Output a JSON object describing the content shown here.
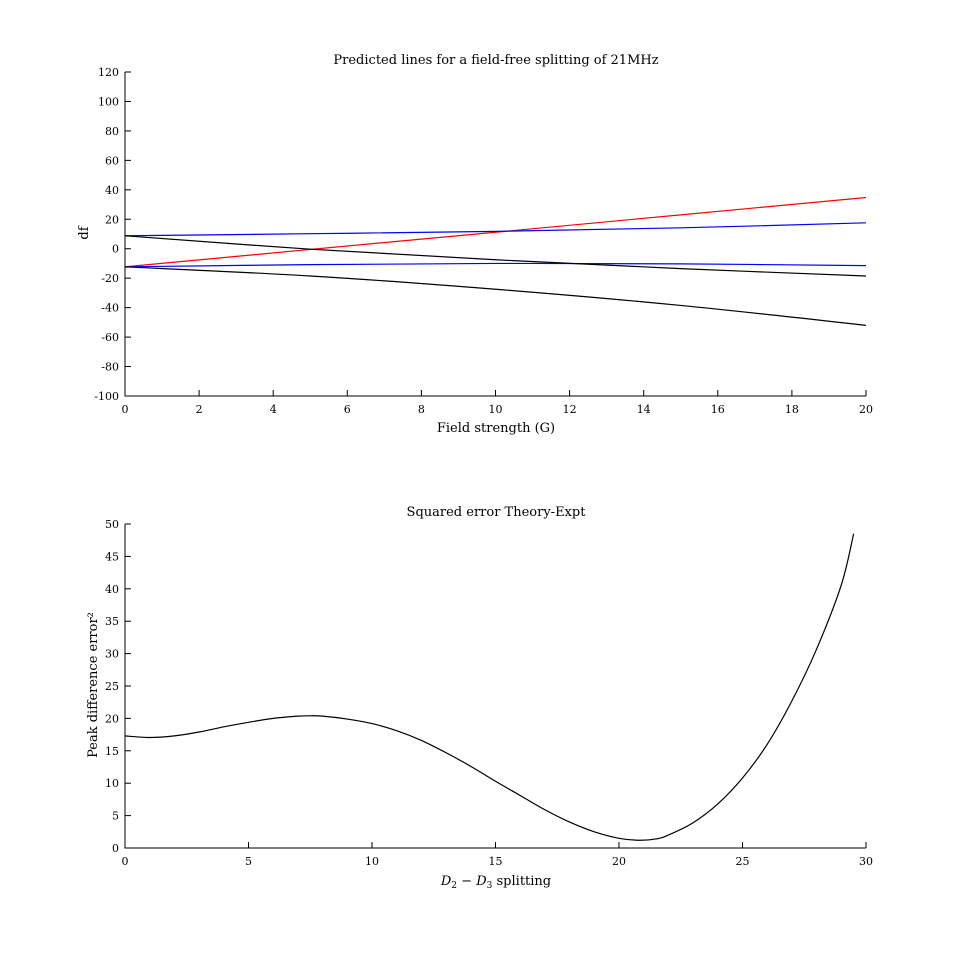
{
  "chart_data": [
    {
      "type": "line",
      "title": "Predicted lines for a field-free splitting of 21MHz",
      "xlabel": "Field strength (G)",
      "ylabel": "df",
      "xlim": [
        0,
        20
      ],
      "ylim": [
        -100,
        120
      ],
      "xticks": [
        0,
        2,
        4,
        6,
        8,
        10,
        12,
        14,
        16,
        18,
        20
      ],
      "yticks": [
        -100,
        -80,
        -60,
        -40,
        -20,
        0,
        20,
        40,
        60,
        80,
        100,
        120
      ],
      "grid": false,
      "series": [
        {
          "color": "#ff0000",
          "x": [
            0,
            5,
            10,
            15,
            20
          ],
          "y": [
            -12.3,
            -0.5,
            11.2,
            23.0,
            34.8
          ]
        },
        {
          "color": "#0000ff",
          "x": [
            0,
            5,
            10,
            15,
            20
          ],
          "y": [
            8.8,
            10.2,
            11.8,
            14.2,
            17.6
          ]
        },
        {
          "color": "#0000ff",
          "x": [
            0,
            5,
            10,
            15,
            20
          ],
          "y": [
            -12.3,
            -10.8,
            -10.0,
            -10.3,
            -11.5
          ]
        },
        {
          "color": "#000000",
          "x": [
            0,
            5,
            10,
            15,
            20
          ],
          "y": [
            8.8,
            -0.3,
            -7.5,
            -13.5,
            -18.5
          ]
        },
        {
          "color": "#000000",
          "x": [
            0,
            5,
            10,
            15,
            20
          ],
          "y": [
            -12.3,
            -18.5,
            -27.5,
            -38.5,
            -52.0
          ]
        }
      ]
    },
    {
      "type": "line",
      "title": "Squared error Theory-Expt",
      "xlabel": "D2 − D3 splitting",
      "xlabel_parts": {
        "d": "D",
        "sub1": "2",
        "minus": " − ",
        "sub2": "3",
        "rest": " splitting"
      },
      "ylabel": "Peak difference error²",
      "xlim": [
        0,
        30
      ],
      "ylim": [
        0,
        50
      ],
      "xticks": [
        0,
        5,
        10,
        15,
        20,
        25,
        30
      ],
      "yticks": [
        0,
        5,
        10,
        15,
        20,
        25,
        30,
        35,
        40,
        45,
        50
      ],
      "grid": false,
      "series": [
        {
          "color": "#000000",
          "x": [
            0,
            1,
            2,
            3,
            4,
            5,
            6,
            7,
            7.5,
            8,
            9,
            10,
            11,
            12,
            13,
            14,
            15,
            16,
            17,
            18,
            19,
            20,
            20.8,
            21.5,
            22,
            23,
            24,
            25,
            26,
            27,
            28,
            29,
            29.5
          ],
          "y": [
            17.3,
            17.05,
            17.3,
            17.9,
            18.7,
            19.4,
            20.0,
            20.35,
            20.4,
            20.35,
            19.9,
            19.2,
            18.1,
            16.6,
            14.7,
            12.6,
            10.3,
            8.1,
            5.9,
            4.0,
            2.5,
            1.5,
            1.2,
            1.4,
            2.0,
            3.9,
            6.8,
            10.8,
            16.0,
            22.7,
            30.7,
            40.6,
            48.5
          ]
        }
      ]
    }
  ]
}
